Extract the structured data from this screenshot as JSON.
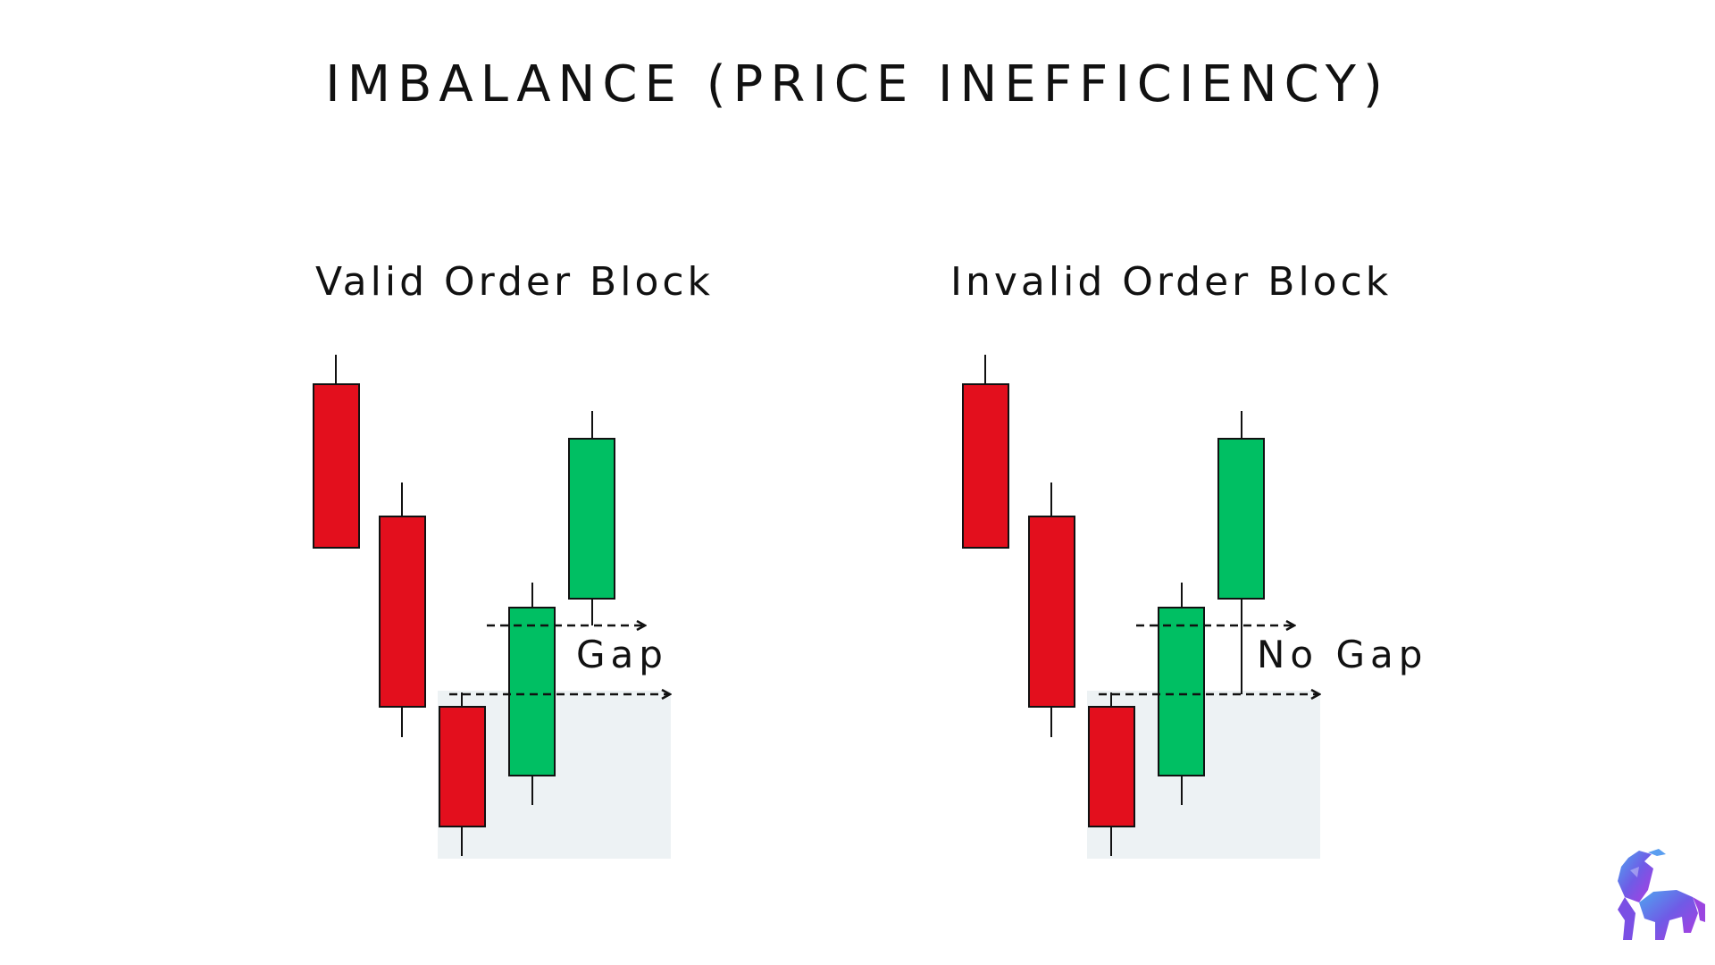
{
  "title": "IMBALANCE (PRICE INEFFICIENCY)",
  "panels": [
    {
      "label": "Valid Order Block",
      "annotation": "Gap",
      "shows_gap": true
    },
    {
      "label": "Invalid Order Block",
      "annotation": "No Gap",
      "shows_gap": false
    }
  ],
  "colors": {
    "bearish": "#e30f1d",
    "bullish": "#00bf63",
    "zone": "#edf2f4",
    "outline": "#111111",
    "logo_primary": "#6f5be6",
    "logo_secondary": "#a24be0"
  },
  "logo": {
    "icon": "bull-icon"
  }
}
